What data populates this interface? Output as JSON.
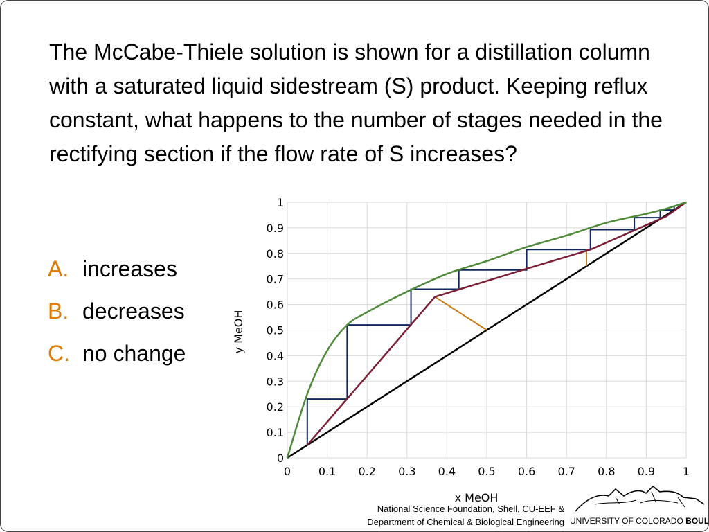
{
  "question": "The McCabe-Thiele solution is shown for a distillation column with a saturated liquid sidestream (S) product. Keeping reflux constant, what happens to the number of stages needed in the rectifying section if the flow rate of S increases?",
  "options": [
    {
      "letter": "A.",
      "text": "increases"
    },
    {
      "letter": "B.",
      "text": "decreases"
    },
    {
      "letter": "C.",
      "text": "no change"
    }
  ],
  "footer": {
    "credit_line1": "National Science Foundation, Shell, CU-EEF &",
    "credit_line2": "Department of Chemical & Biological Engineering",
    "university": "UNIVERSITY OF COLORADO",
    "university_bold": "BOULDER"
  },
  "colors": {
    "equilibrium": "#4f8a3a",
    "operating_line": "#7a1f35",
    "diagonal": "#000000",
    "stages": "#10275e",
    "feed_line": "#c87a12",
    "side_line": "#c87a12",
    "accent": "#e07b00"
  },
  "chart_data": {
    "type": "line",
    "xlabel": "x MeOH",
    "ylabel": "y MeOH",
    "xlim": [
      0,
      1
    ],
    "ylim": [
      0,
      1
    ],
    "xticks": [
      "0",
      "0.1",
      "0.2",
      "0.3",
      "0.4",
      "0.5",
      "0.6",
      "0.7",
      "0.8",
      "0.9",
      "1"
    ],
    "yticks": [
      "0",
      "0.1",
      "0.2",
      "0.3",
      "0.4",
      "0.5",
      "0.6",
      "0.7",
      "0.8",
      "0.9",
      "1"
    ],
    "grid": true,
    "series": [
      {
        "key": "equilibrium",
        "x": [
          0,
          0.05,
          0.1,
          0.15,
          0.2,
          0.3,
          0.4,
          0.5,
          0.6,
          0.7,
          0.8,
          0.9,
          0.95,
          1
        ],
        "y": [
          0,
          0.25,
          0.42,
          0.52,
          0.57,
          0.65,
          0.72,
          0.77,
          0.825,
          0.87,
          0.92,
          0.955,
          0.975,
          1
        ]
      },
      {
        "key": "operating_line",
        "x": [
          0.05,
          0.37,
          0.6,
          0.76,
          0.95,
          1
        ],
        "y": [
          0.05,
          0.63,
          0.74,
          0.815,
          0.945,
          1
        ]
      },
      {
        "key": "diagonal",
        "x": [
          0,
          1
        ],
        "y": [
          0,
          1
        ]
      },
      {
        "key": "stages",
        "x": [
          0.05,
          0.05,
          0.15,
          0.15,
          0.31,
          0.31,
          0.43,
          0.43,
          0.6,
          0.6,
          0.76,
          0.76,
          0.87,
          0.87,
          0.935,
          0.935,
          0.97,
          0.97
        ],
        "y": [
          0.05,
          0.23,
          0.23,
          0.52,
          0.52,
          0.66,
          0.66,
          0.735,
          0.735,
          0.815,
          0.815,
          0.893,
          0.893,
          0.94,
          0.94,
          0.97,
          0.97,
          0.985
        ]
      },
      {
        "key": "feed_line",
        "x": [
          0.37,
          0.5
        ],
        "y": [
          0.63,
          0.5
        ]
      },
      {
        "key": "side_line",
        "x": [
          0.75,
          0.75
        ],
        "y": [
          0.75,
          0.815
        ]
      }
    ]
  }
}
